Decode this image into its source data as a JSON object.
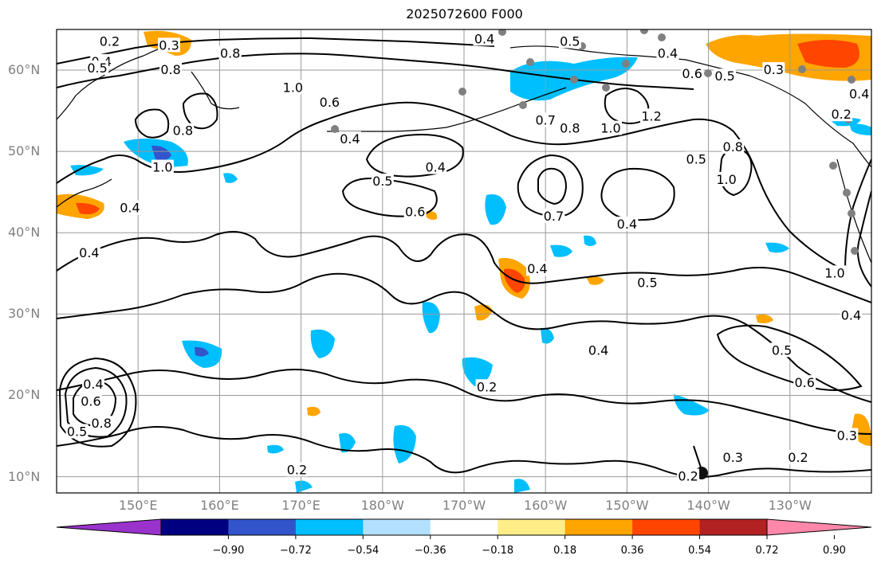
{
  "title": "2025072600 F000",
  "lat_labels": [
    {
      "text": "60°N",
      "lat": 60
    },
    {
      "text": "50°N",
      "lat": 50
    },
    {
      "text": "40°N",
      "lat": 40
    },
    {
      "text": "30°N",
      "lat": 30
    },
    {
      "text": "20°N",
      "lat": 20
    },
    {
      "text": "10°N",
      "lat": 10
    }
  ],
  "lon_labels": [
    {
      "text": "150°E",
      "lon": 150
    },
    {
      "text": "160°E",
      "lon": 160
    },
    {
      "text": "170°E",
      "lon": 170
    },
    {
      "text": "180°W",
      "lon": 180
    },
    {
      "text": "170°W",
      "lon": 190
    },
    {
      "text": "160°W",
      "lon": 200
    },
    {
      "text": "150°W",
      "lon": 210
    },
    {
      "text": "140°W",
      "lon": 220
    },
    {
      "text": "130°W",
      "lon": 230
    }
  ],
  "map_extent": {
    "lon_min": 140,
    "lon_max": 240,
    "lat_min": 8,
    "lat_max": 65
  },
  "colorbar": {
    "colors": [
      "#9933cc",
      "#000080",
      "#3355cc",
      "#00bfff",
      "#b3e0ff",
      "#ffffff",
      "#ffee88",
      "#ffa500",
      "#ff4500",
      "#b22222",
      "#ff88aa"
    ],
    "ticks": [
      "−0.90",
      "−0.72",
      "−0.54",
      "−0.36",
      "−0.18",
      "0.18",
      "0.36",
      "0.54",
      "0.72",
      "0.90"
    ]
  },
  "contour_labels": [
    {
      "text": "0.2",
      "lon": 146.5,
      "lat": 63.5
    },
    {
      "text": "0.3",
      "lon": 153.8,
      "lat": 63.0
    },
    {
      "text": "0.4",
      "lon": 145.5,
      "lat": 61.0
    },
    {
      "text": "0.5",
      "lon": 145.0,
      "lat": 60.2
    },
    {
      "text": "0.8",
      "lon": 154.0,
      "lat": 60.0
    },
    {
      "text": "0.8",
      "lon": 161.3,
      "lat": 62.0
    },
    {
      "text": "0.4",
      "lon": 192.5,
      "lat": 63.8
    },
    {
      "text": "0.5",
      "lon": 203.0,
      "lat": 63.5
    },
    {
      "text": "0.4",
      "lon": 215.0,
      "lat": 62.0
    },
    {
      "text": "0.6",
      "lon": 218.0,
      "lat": 59.5
    },
    {
      "text": "0.5",
      "lon": 222.0,
      "lat": 59.2
    },
    {
      "text": "0.3",
      "lon": 228.0,
      "lat": 60.0
    },
    {
      "text": "0.4",
      "lon": 238.5,
      "lat": 57.0
    },
    {
      "text": "0.2",
      "lon": 236.3,
      "lat": 54.5
    },
    {
      "text": "1.0",
      "lon": 169.0,
      "lat": 57.8
    },
    {
      "text": "0.6",
      "lon": 173.5,
      "lat": 56.0
    },
    {
      "text": "0.4",
      "lon": 176.0,
      "lat": 51.5
    },
    {
      "text": "0.8",
      "lon": 155.5,
      "lat": 52.5
    },
    {
      "text": "1.0",
      "lon": 153.0,
      "lat": 48.0
    },
    {
      "text": "0.4",
      "lon": 149.0,
      "lat": 43.0
    },
    {
      "text": "0.4",
      "lon": 144.0,
      "lat": 37.5
    },
    {
      "text": "0.4",
      "lon": 186.5,
      "lat": 48.0
    },
    {
      "text": "0.5",
      "lon": 180.0,
      "lat": 46.3
    },
    {
      "text": "0.6",
      "lon": 184.0,
      "lat": 42.5
    },
    {
      "text": "0.7",
      "lon": 200.0,
      "lat": 53.8
    },
    {
      "text": "0.8",
      "lon": 203.0,
      "lat": 52.8
    },
    {
      "text": "1.0",
      "lon": 208.0,
      "lat": 52.8
    },
    {
      "text": "1.2",
      "lon": 213.0,
      "lat": 54.3
    },
    {
      "text": "0.5",
      "lon": 218.5,
      "lat": 49.0
    },
    {
      "text": "0.8",
      "lon": 223.0,
      "lat": 50.5
    },
    {
      "text": "1.0",
      "lon": 222.2,
      "lat": 46.5
    },
    {
      "text": "0.7",
      "lon": 201.0,
      "lat": 42.0
    },
    {
      "text": "0.4",
      "lon": 210.0,
      "lat": 41.0
    },
    {
      "text": "0.4",
      "lon": 199.0,
      "lat": 35.5
    },
    {
      "text": "0.5",
      "lon": 212.5,
      "lat": 33.8
    },
    {
      "text": "1.0",
      "lon": 235.5,
      "lat": 35.0
    },
    {
      "text": "0.4",
      "lon": 237.5,
      "lat": 29.8
    },
    {
      "text": "0.4",
      "lon": 206.5,
      "lat": 25.5
    },
    {
      "text": "0.5",
      "lon": 229.0,
      "lat": 25.5
    },
    {
      "text": "0.6",
      "lon": 231.8,
      "lat": 21.5
    },
    {
      "text": "0.2",
      "lon": 192.8,
      "lat": 21.0
    },
    {
      "text": "0.4",
      "lon": 144.5,
      "lat": 21.3
    },
    {
      "text": "0.6",
      "lon": 144.2,
      "lat": 19.2
    },
    {
      "text": "0.8",
      "lon": 145.5,
      "lat": 16.5
    },
    {
      "text": "0.5",
      "lon": 142.5,
      "lat": 15.5
    },
    {
      "text": "0.3",
      "lon": 237.0,
      "lat": 15.0
    },
    {
      "text": "0.2",
      "lon": 231.0,
      "lat": 12.3
    },
    {
      "text": "0.3",
      "lon": 223.0,
      "lat": 12.3
    },
    {
      "text": "0.2",
      "lon": 217.5,
      "lat": 10.0
    },
    {
      "text": "0.2",
      "lon": 169.5,
      "lat": 10.8
    }
  ]
}
